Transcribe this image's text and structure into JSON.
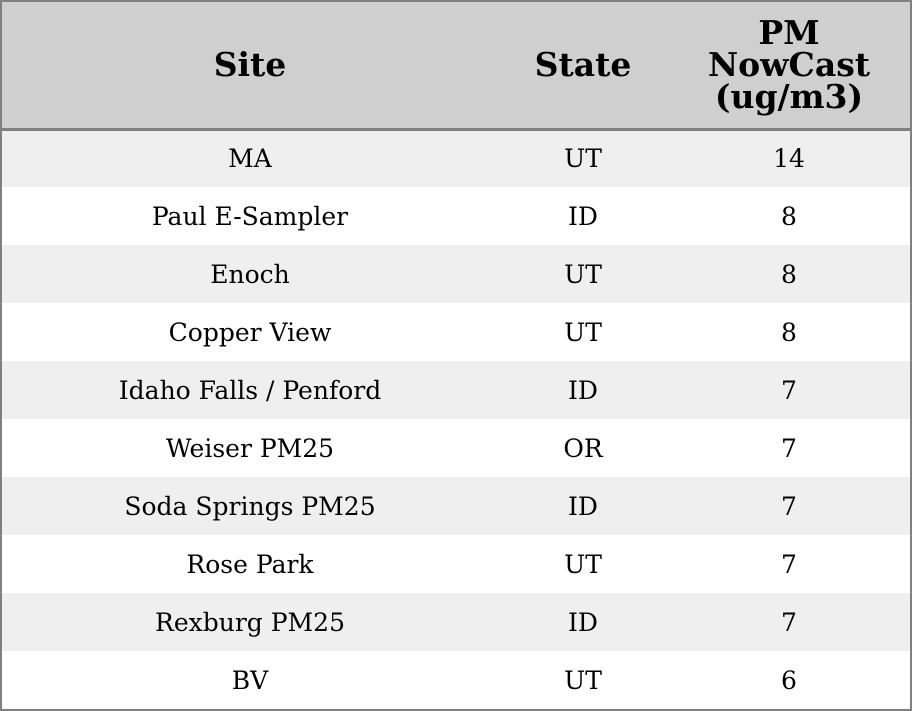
{
  "chart_data": {
    "type": "table",
    "columns": [
      "Site",
      "State",
      "PM NowCast (ug/m3)"
    ],
    "rows": [
      [
        "MA",
        "UT",
        14
      ],
      [
        "Paul E-Sampler",
        "ID",
        8
      ],
      [
        "Enoch",
        "UT",
        8
      ],
      [
        "Copper View",
        "UT",
        8
      ],
      [
        "Idaho Falls / Penford",
        "ID",
        7
      ],
      [
        "Weiser PM25",
        "OR",
        7
      ],
      [
        "Soda Springs PM25",
        "ID",
        7
      ],
      [
        "Rose Park",
        "UT",
        7
      ],
      [
        "Rexburg PM25",
        "ID",
        7
      ],
      [
        "BV",
        "UT",
        6
      ]
    ],
    "colors": {
      "header_bg": "#cfcfcf",
      "row_alt_bg": "#efefef",
      "row_bg": "#ffffff",
      "border": "#808080"
    }
  }
}
